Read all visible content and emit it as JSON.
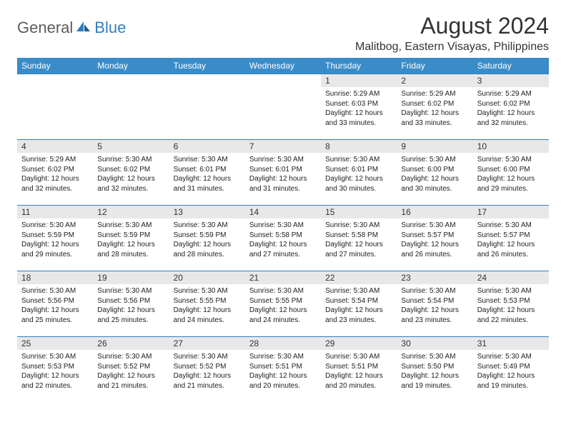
{
  "brand": {
    "general": "General",
    "blue": "Blue"
  },
  "title": "August 2024",
  "location": "Malitbog, Eastern Visayas, Philippines",
  "colors": {
    "header_bg": "#3a8cc9",
    "header_text": "#ffffff",
    "daynum_bg": "#e8e8e8",
    "border": "#2f7ec0",
    "logo_gray": "#5b5b5b",
    "logo_blue": "#2f7ec0"
  },
  "typography": {
    "title_fontsize": 32,
    "location_fontsize": 16,
    "header_fontsize": 12,
    "daynum_fontsize": 12,
    "body_fontsize": 10
  },
  "day_names": [
    "Sunday",
    "Monday",
    "Tuesday",
    "Wednesday",
    "Thursday",
    "Friday",
    "Saturday"
  ],
  "weeks": [
    [
      null,
      null,
      null,
      null,
      {
        "n": "1",
        "sunrise": "5:29 AM",
        "sunset": "6:03 PM",
        "daylight": "12 hours and 33 minutes."
      },
      {
        "n": "2",
        "sunrise": "5:29 AM",
        "sunset": "6:02 PM",
        "daylight": "12 hours and 33 minutes."
      },
      {
        "n": "3",
        "sunrise": "5:29 AM",
        "sunset": "6:02 PM",
        "daylight": "12 hours and 32 minutes."
      }
    ],
    [
      {
        "n": "4",
        "sunrise": "5:29 AM",
        "sunset": "6:02 PM",
        "daylight": "12 hours and 32 minutes."
      },
      {
        "n": "5",
        "sunrise": "5:30 AM",
        "sunset": "6:02 PM",
        "daylight": "12 hours and 32 minutes."
      },
      {
        "n": "6",
        "sunrise": "5:30 AM",
        "sunset": "6:01 PM",
        "daylight": "12 hours and 31 minutes."
      },
      {
        "n": "7",
        "sunrise": "5:30 AM",
        "sunset": "6:01 PM",
        "daylight": "12 hours and 31 minutes."
      },
      {
        "n": "8",
        "sunrise": "5:30 AM",
        "sunset": "6:01 PM",
        "daylight": "12 hours and 30 minutes."
      },
      {
        "n": "9",
        "sunrise": "5:30 AM",
        "sunset": "6:00 PM",
        "daylight": "12 hours and 30 minutes."
      },
      {
        "n": "10",
        "sunrise": "5:30 AM",
        "sunset": "6:00 PM",
        "daylight": "12 hours and 29 minutes."
      }
    ],
    [
      {
        "n": "11",
        "sunrise": "5:30 AM",
        "sunset": "5:59 PM",
        "daylight": "12 hours and 29 minutes."
      },
      {
        "n": "12",
        "sunrise": "5:30 AM",
        "sunset": "5:59 PM",
        "daylight": "12 hours and 28 minutes."
      },
      {
        "n": "13",
        "sunrise": "5:30 AM",
        "sunset": "5:59 PM",
        "daylight": "12 hours and 28 minutes."
      },
      {
        "n": "14",
        "sunrise": "5:30 AM",
        "sunset": "5:58 PM",
        "daylight": "12 hours and 27 minutes."
      },
      {
        "n": "15",
        "sunrise": "5:30 AM",
        "sunset": "5:58 PM",
        "daylight": "12 hours and 27 minutes."
      },
      {
        "n": "16",
        "sunrise": "5:30 AM",
        "sunset": "5:57 PM",
        "daylight": "12 hours and 26 minutes."
      },
      {
        "n": "17",
        "sunrise": "5:30 AM",
        "sunset": "5:57 PM",
        "daylight": "12 hours and 26 minutes."
      }
    ],
    [
      {
        "n": "18",
        "sunrise": "5:30 AM",
        "sunset": "5:56 PM",
        "daylight": "12 hours and 25 minutes."
      },
      {
        "n": "19",
        "sunrise": "5:30 AM",
        "sunset": "5:56 PM",
        "daylight": "12 hours and 25 minutes."
      },
      {
        "n": "20",
        "sunrise": "5:30 AM",
        "sunset": "5:55 PM",
        "daylight": "12 hours and 24 minutes."
      },
      {
        "n": "21",
        "sunrise": "5:30 AM",
        "sunset": "5:55 PM",
        "daylight": "12 hours and 24 minutes."
      },
      {
        "n": "22",
        "sunrise": "5:30 AM",
        "sunset": "5:54 PM",
        "daylight": "12 hours and 23 minutes."
      },
      {
        "n": "23",
        "sunrise": "5:30 AM",
        "sunset": "5:54 PM",
        "daylight": "12 hours and 23 minutes."
      },
      {
        "n": "24",
        "sunrise": "5:30 AM",
        "sunset": "5:53 PM",
        "daylight": "12 hours and 22 minutes."
      }
    ],
    [
      {
        "n": "25",
        "sunrise": "5:30 AM",
        "sunset": "5:53 PM",
        "daylight": "12 hours and 22 minutes."
      },
      {
        "n": "26",
        "sunrise": "5:30 AM",
        "sunset": "5:52 PM",
        "daylight": "12 hours and 21 minutes."
      },
      {
        "n": "27",
        "sunrise": "5:30 AM",
        "sunset": "5:52 PM",
        "daylight": "12 hours and 21 minutes."
      },
      {
        "n": "28",
        "sunrise": "5:30 AM",
        "sunset": "5:51 PM",
        "daylight": "12 hours and 20 minutes."
      },
      {
        "n": "29",
        "sunrise": "5:30 AM",
        "sunset": "5:51 PM",
        "daylight": "12 hours and 20 minutes."
      },
      {
        "n": "30",
        "sunrise": "5:30 AM",
        "sunset": "5:50 PM",
        "daylight": "12 hours and 19 minutes."
      },
      {
        "n": "31",
        "sunrise": "5:30 AM",
        "sunset": "5:49 PM",
        "daylight": "12 hours and 19 minutes."
      }
    ]
  ]
}
